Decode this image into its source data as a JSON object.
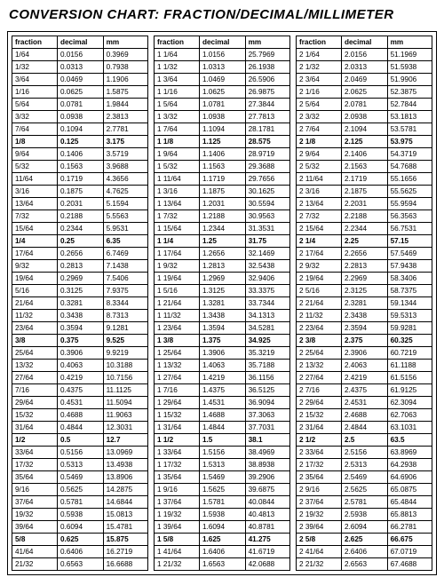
{
  "title": "CONVERSION CHART: FRACTION/DECIMAL/MILLIMETER",
  "headers": [
    "fraction",
    "decimal",
    "mm"
  ],
  "bold_rows": [
    "1/8",
    "1/4",
    "3/8",
    "1/2",
    "5/8",
    "1 1/8",
    "1 1/4",
    "1 3/8",
    "1 1/2",
    "1 5/8",
    "2 1/8",
    "2 1/4",
    "2 3/8",
    "2 1/2",
    "2 5/8"
  ],
  "columns": [
    [
      [
        "1/64",
        "0.0156",
        "0.3969"
      ],
      [
        "1/32",
        "0.0313",
        "0.7938"
      ],
      [
        "3/64",
        "0.0469",
        "1.1906"
      ],
      [
        "1/16",
        "0.0625",
        "1.5875"
      ],
      [
        "5/64",
        "0.0781",
        "1.9844"
      ],
      [
        "3/32",
        "0.0938",
        "2.3813"
      ],
      [
        "7/64",
        "0.1094",
        "2.7781"
      ],
      [
        "1/8",
        "0.125",
        "3.175"
      ],
      [
        "9/64",
        "0.1406",
        "3.5719"
      ],
      [
        "5/32",
        "0.1563",
        "3.9688"
      ],
      [
        "11/64",
        "0.1719",
        "4.3656"
      ],
      [
        "3/16",
        "0.1875",
        "4.7625"
      ],
      [
        "13/64",
        "0.2031",
        "5.1594"
      ],
      [
        "7/32",
        "0.2188",
        "5.5563"
      ],
      [
        "15/64",
        "0.2344",
        "5.9531"
      ],
      [
        "1/4",
        "0.25",
        "6.35"
      ],
      [
        "17/64",
        "0.2656",
        "6.7469"
      ],
      [
        "9/32",
        "0.2813",
        "7.1438"
      ],
      [
        "19/64",
        "0.2969",
        "7.5406"
      ],
      [
        "5/16",
        "0.3125",
        "7.9375"
      ],
      [
        "21/64",
        "0.3281",
        "8.3344"
      ],
      [
        "11/32",
        "0.3438",
        "8.7313"
      ],
      [
        "23/64",
        "0.3594",
        "9.1281"
      ],
      [
        "3/8",
        "0.375",
        "9.525"
      ],
      [
        "25/64",
        "0.3906",
        "9.9219"
      ],
      [
        "13/32",
        "0.4063",
        "10.3188"
      ],
      [
        "27/64",
        "0.4219",
        "10.7156"
      ],
      [
        "7/16",
        "0.4375",
        "11.1125"
      ],
      [
        "29/64",
        "0.4531",
        "11.5094"
      ],
      [
        "15/32",
        "0.4688",
        "11.9063"
      ],
      [
        "31/64",
        "0.4844",
        "12.3031"
      ],
      [
        "1/2",
        "0.5",
        "12.7"
      ],
      [
        "33/64",
        "0.5156",
        "13.0969"
      ],
      [
        "17/32",
        "0.5313",
        "13.4938"
      ],
      [
        "35/64",
        "0.5469",
        "13.8906"
      ],
      [
        "9/16",
        "0.5625",
        "14.2875"
      ],
      [
        "37/64",
        "0.5781",
        "14.6844"
      ],
      [
        "19/32",
        "0.5938",
        "15.0813"
      ],
      [
        "39/64",
        "0.6094",
        "15.4781"
      ],
      [
        "5/8",
        "0.625",
        "15.875"
      ],
      [
        "41/64",
        "0.6406",
        "16.2719"
      ],
      [
        "21/32",
        "0.6563",
        "16.6688"
      ]
    ],
    [
      [
        "1 1/64",
        "1.0156",
        "25.7969"
      ],
      [
        "1 1/32",
        "1.0313",
        "26.1938"
      ],
      [
        "1 3/64",
        "1.0469",
        "26.5906"
      ],
      [
        "1 1/16",
        "1.0625",
        "26.9875"
      ],
      [
        "1 5/64",
        "1.0781",
        "27.3844"
      ],
      [
        "1 3/32",
        "1.0938",
        "27.7813"
      ],
      [
        "1 7/64",
        "1.1094",
        "28.1781"
      ],
      [
        "1 1/8",
        "1.125",
        "28.575"
      ],
      [
        "1 9/64",
        "1.1406",
        "28.9719"
      ],
      [
        "1 5/32",
        "1.1563",
        "29.3688"
      ],
      [
        "1 11/64",
        "1.1719",
        "29.7656"
      ],
      [
        "1 3/16",
        "1.1875",
        "30.1625"
      ],
      [
        "1 13/64",
        "1.2031",
        "30.5594"
      ],
      [
        "1 7/32",
        "1.2188",
        "30.9563"
      ],
      [
        "1 15/64",
        "1.2344",
        "31.3531"
      ],
      [
        "1 1/4",
        "1.25",
        "31.75"
      ],
      [
        "1 17/64",
        "1.2656",
        "32.1469"
      ],
      [
        "1 9/32",
        "1.2813",
        "32.5438"
      ],
      [
        "1 19/64",
        "1.2969",
        "32.9406"
      ],
      [
        "1 5/16",
        "1.3125",
        "33.3375"
      ],
      [
        "1 21/64",
        "1.3281",
        "33.7344"
      ],
      [
        "1 11/32",
        "1.3438",
        "34.1313"
      ],
      [
        "1 23/64",
        "1.3594",
        "34.5281"
      ],
      [
        "1 3/8",
        "1.375",
        "34.925"
      ],
      [
        "1 25/64",
        "1.3906",
        "35.3219"
      ],
      [
        "1 13/32",
        "1.4063",
        "35.7188"
      ],
      [
        "1 27/64",
        "1.4219",
        "36.1156"
      ],
      [
        "1 7/16",
        "1.4375",
        "36.5125"
      ],
      [
        "1 29/64",
        "1.4531",
        "36.9094"
      ],
      [
        "1 15/32",
        "1.4688",
        "37.3063"
      ],
      [
        "1 31/64",
        "1.4844",
        "37.7031"
      ],
      [
        "1 1/2",
        "1.5",
        "38.1"
      ],
      [
        "1 33/64",
        "1.5156",
        "38.4969"
      ],
      [
        "1 17/32",
        "1.5313",
        "38.8938"
      ],
      [
        "1 35/64",
        "1.5469",
        "39.2906"
      ],
      [
        "1 9/16",
        "1.5625",
        "39.6875"
      ],
      [
        "1 37/64",
        "1.5781",
        "40.0844"
      ],
      [
        "1 19/32",
        "1.5938",
        "40.4813"
      ],
      [
        "1 39/64",
        "1.6094",
        "40.8781"
      ],
      [
        "1 5/8",
        "1.625",
        "41.275"
      ],
      [
        "1 41/64",
        "1.6406",
        "41.6719"
      ],
      [
        "1 21/32",
        "1.6563",
        "42.0688"
      ]
    ],
    [
      [
        "2 1/64",
        "2.0156",
        "51.1969"
      ],
      [
        "2 1/32",
        "2.0313",
        "51.5938"
      ],
      [
        "2 3/64",
        "2.0469",
        "51.9906"
      ],
      [
        "2 1/16",
        "2.0625",
        "52.3875"
      ],
      [
        "2 5/64",
        "2.0781",
        "52.7844"
      ],
      [
        "2 3/32",
        "2.0938",
        "53.1813"
      ],
      [
        "2 7/64",
        "2.1094",
        "53.5781"
      ],
      [
        "2 1/8",
        "2.125",
        "53.975"
      ],
      [
        "2 9/64",
        "2.1406",
        "54.3719"
      ],
      [
        "2 5/32",
        "2.1563",
        "54.7688"
      ],
      [
        "2 11/64",
        "2.1719",
        "55.1656"
      ],
      [
        "2 3/16",
        "2.1875",
        "55.5625"
      ],
      [
        "2 13/64",
        "2.2031",
        "55.9594"
      ],
      [
        "2 7/32",
        "2.2188",
        "56.3563"
      ],
      [
        "2 15/64",
        "2.2344",
        "56.7531"
      ],
      [
        "2 1/4",
        "2.25",
        "57.15"
      ],
      [
        "2 17/64",
        "2.2656",
        "57.5469"
      ],
      [
        "2 9/32",
        "2.2813",
        "57.9438"
      ],
      [
        "2 19/64",
        "2.2969",
        "58.3406"
      ],
      [
        "2 5/16",
        "2.3125",
        "58.7375"
      ],
      [
        "2 21/64",
        "2.3281",
        "59.1344"
      ],
      [
        "2 11/32",
        "2.3438",
        "59.5313"
      ],
      [
        "2 23/64",
        "2.3594",
        "59.9281"
      ],
      [
        "2 3/8",
        "2.375",
        "60.325"
      ],
      [
        "2 25/64",
        "2.3906",
        "60.7219"
      ],
      [
        "2 13/32",
        "2.4063",
        "61.1188"
      ],
      [
        "2 27/64",
        "2.4219",
        "61.5156"
      ],
      [
        "2 7/16",
        "2.4375",
        "61.9125"
      ],
      [
        "2 29/64",
        "2.4531",
        "62.3094"
      ],
      [
        "2 15/32",
        "2.4688",
        "62.7063"
      ],
      [
        "2 31/64",
        "2.4844",
        "63.1031"
      ],
      [
        "2 1/2",
        "2.5",
        "63.5"
      ],
      [
        "2 33/64",
        "2.5156",
        "63.8969"
      ],
      [
        "2 17/32",
        "2.5313",
        "64.2938"
      ],
      [
        "2 35/64",
        "2.5469",
        "64.6906"
      ],
      [
        "2 9/16",
        "2.5625",
        "65.0875"
      ],
      [
        "2 37/64",
        "2.5781",
        "65.4844"
      ],
      [
        "2 19/32",
        "2.5938",
        "65.8813"
      ],
      [
        "2 39/64",
        "2.6094",
        "66.2781"
      ],
      [
        "2 5/8",
        "2.625",
        "66.675"
      ],
      [
        "2 41/64",
        "2.6406",
        "67.0719"
      ],
      [
        "2 21/32",
        "2.6563",
        "67.4688"
      ]
    ]
  ]
}
